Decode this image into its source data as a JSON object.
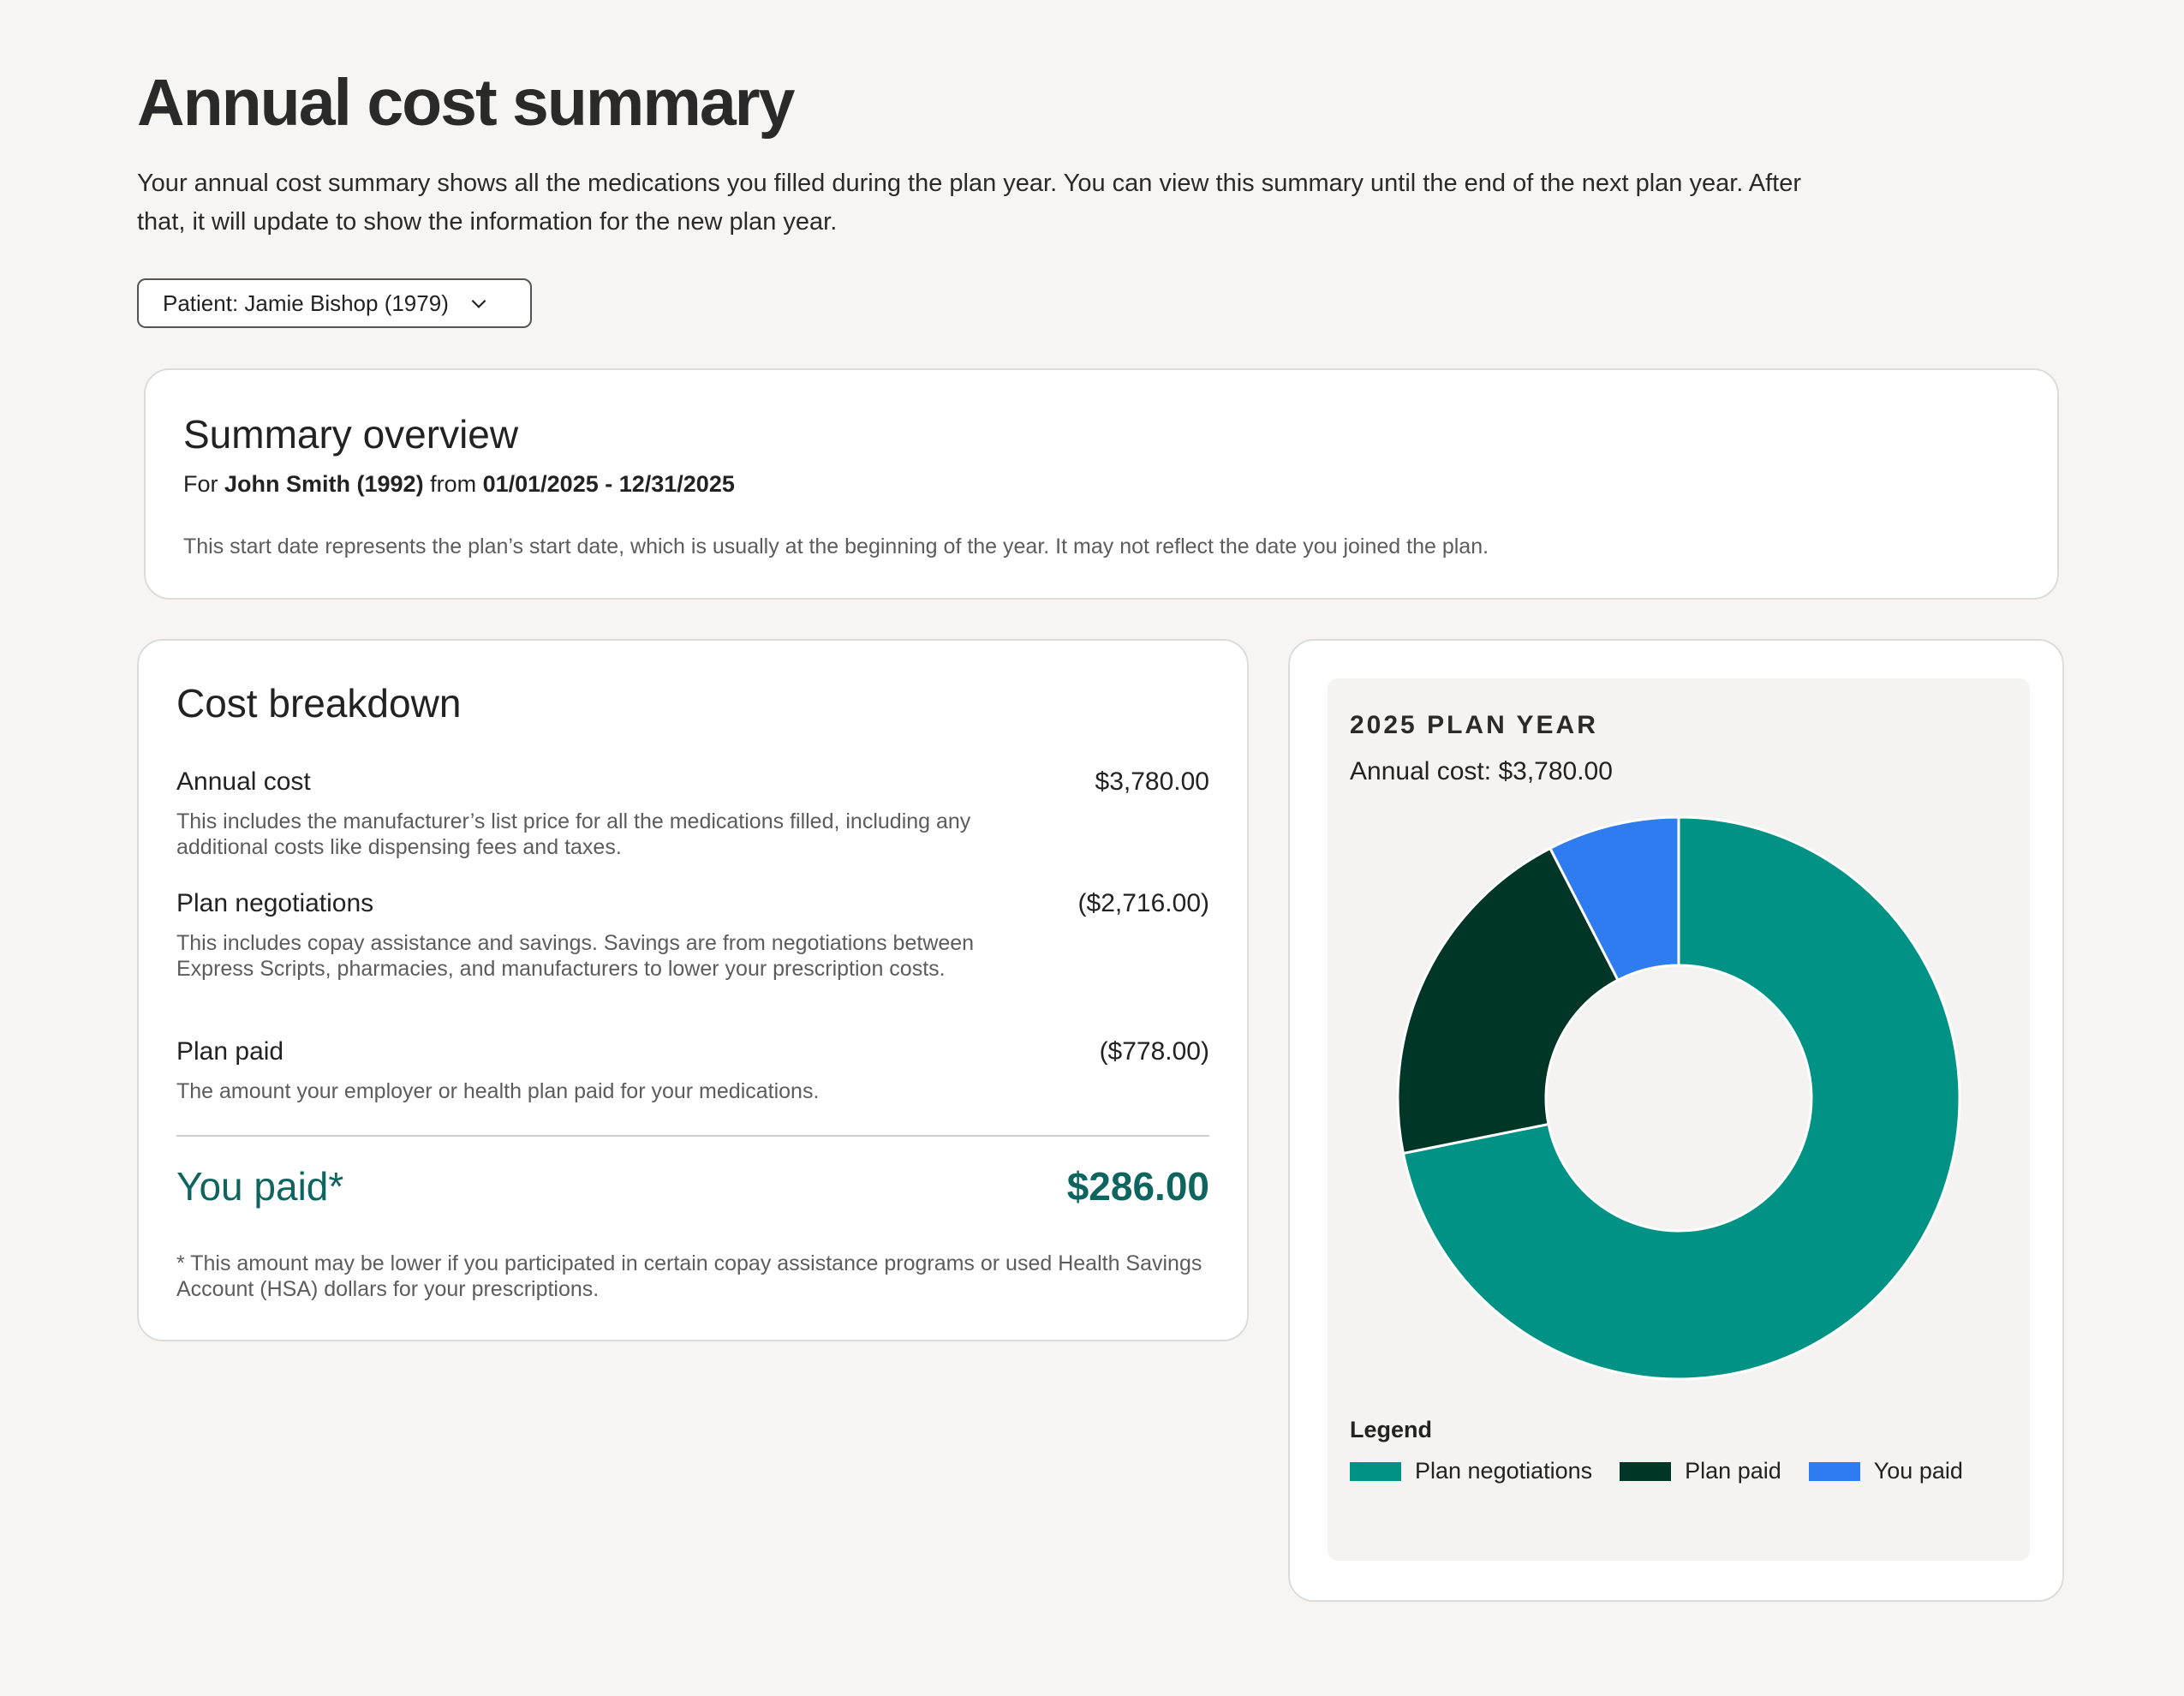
{
  "page": {
    "title": "Annual cost summary",
    "intro": "Your annual cost summary shows all the medications you filled during the plan year. You can view this summary until the end of the next plan year. After that, it will update to show the information for the new plan year.",
    "patient_select": "Patient: Jamie Bishop (1979)"
  },
  "summary": {
    "title": "Summary overview",
    "for_prefix": "For",
    "member": "John Smith (1992)",
    "from_text": "from",
    "date_range": "01/01/2025 - 12/31/2025",
    "note": "This start date represents the plan’s start date, which is usually at the beginning of the year. It may not reflect the date you joined the plan."
  },
  "breakdown": {
    "title": "Cost breakdown",
    "rows": [
      {
        "label": "Annual cost",
        "value": "$3,780.00",
        "desc": "This includes the manufacturer’s list price for all the medications filled, including any additional costs like dispensing fees and taxes."
      },
      {
        "label": "Plan negotiations",
        "value": "($2,716.00)",
        "desc": "This includes copay assistance and savings. Savings are from negotiations between Express Scripts, pharmacies, and manufacturers to lower your prescription costs."
      },
      {
        "label": "Plan paid",
        "value": "($778.00)",
        "desc": "The amount your employer or health plan paid for your medications."
      }
    ],
    "you_paid_label": "You paid*",
    "you_paid_value": "$286.00",
    "footnote": "* This amount may be lower if you participated in certain copay assistance programs or used Health Savings Account (HSA) dollars for your prescriptions."
  },
  "chart_panel": {
    "heading": "2025 PLAN YEAR",
    "annual_label": "Annual cost:",
    "annual_value": "$3,780.00",
    "legend_title": "Legend"
  },
  "chart_data": {
    "type": "pie",
    "donut": true,
    "categories": [
      "Plan negotiations",
      "Plan paid",
      "You paid"
    ],
    "values": [
      2716,
      778,
      286
    ],
    "colors": [
      "#009385",
      "#003628",
      "#2f7bf0"
    ],
    "legend": "bottom-left"
  }
}
